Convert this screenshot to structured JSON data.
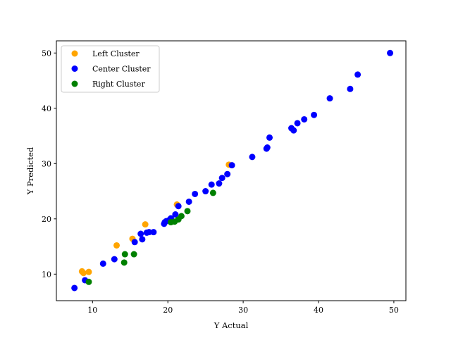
{
  "chart_data": {
    "type": "scatter",
    "title": "",
    "xlabel": "Y Actual",
    "ylabel": "Y Predicted",
    "xlim": [
      5.2,
      51.6
    ],
    "ylim": [
      5.2,
      52.2
    ],
    "xticks": [
      10,
      20,
      30,
      40,
      50
    ],
    "yticks": [
      10,
      20,
      30,
      40,
      50
    ],
    "xtick_labels": [
      "10",
      "20",
      "30",
      "40",
      "50"
    ],
    "ytick_labels": [
      "10",
      "20",
      "30",
      "40",
      "50"
    ],
    "grid": false,
    "legend_position": "top-left",
    "series": [
      {
        "name": "Left Cluster",
        "color": "#ffa500",
        "points": [
          {
            "x": 8.6,
            "y": 10.5
          },
          {
            "x": 8.8,
            "y": 10.2
          },
          {
            "x": 9.5,
            "y": 10.4
          },
          {
            "x": 13.2,
            "y": 15.2
          },
          {
            "x": 15.3,
            "y": 16.4
          },
          {
            "x": 17.0,
            "y": 19.0
          },
          {
            "x": 21.2,
            "y": 22.6
          },
          {
            "x": 28.1,
            "y": 29.8
          }
        ]
      },
      {
        "name": "Center Cluster",
        "color": "#0000ff",
        "points": [
          {
            "x": 7.6,
            "y": 7.5
          },
          {
            "x": 9.0,
            "y": 8.9
          },
          {
            "x": 11.4,
            "y": 11.9
          },
          {
            "x": 12.9,
            "y": 12.7
          },
          {
            "x": 15.6,
            "y": 15.8
          },
          {
            "x": 16.4,
            "y": 17.3
          },
          {
            "x": 16.6,
            "y": 16.3
          },
          {
            "x": 17.2,
            "y": 17.5
          },
          {
            "x": 17.5,
            "y": 17.6
          },
          {
            "x": 18.1,
            "y": 17.6
          },
          {
            "x": 19.5,
            "y": 19.1
          },
          {
            "x": 19.6,
            "y": 19.4
          },
          {
            "x": 19.8,
            "y": 19.6
          },
          {
            "x": 20.2,
            "y": 19.8
          },
          {
            "x": 20.4,
            "y": 20.1
          },
          {
            "x": 21.0,
            "y": 20.8
          },
          {
            "x": 21.4,
            "y": 22.3
          },
          {
            "x": 22.8,
            "y": 23.1
          },
          {
            "x": 23.6,
            "y": 24.5
          },
          {
            "x": 25.0,
            "y": 25.0
          },
          {
            "x": 25.8,
            "y": 26.2
          },
          {
            "x": 26.8,
            "y": 26.4
          },
          {
            "x": 27.2,
            "y": 27.4
          },
          {
            "x": 27.9,
            "y": 28.1
          },
          {
            "x": 28.5,
            "y": 29.7
          },
          {
            "x": 31.2,
            "y": 31.2
          },
          {
            "x": 33.1,
            "y": 32.7
          },
          {
            "x": 33.2,
            "y": 32.9
          },
          {
            "x": 33.5,
            "y": 34.7
          },
          {
            "x": 36.4,
            "y": 36.4
          },
          {
            "x": 36.7,
            "y": 36.0
          },
          {
            "x": 37.2,
            "y": 37.3
          },
          {
            "x": 38.1,
            "y": 38.0
          },
          {
            "x": 39.4,
            "y": 38.8
          },
          {
            "x": 41.5,
            "y": 41.8
          },
          {
            "x": 44.2,
            "y": 43.5
          },
          {
            "x": 45.2,
            "y": 46.1
          },
          {
            "x": 49.5,
            "y": 50.0
          }
        ]
      },
      {
        "name": "Right Cluster",
        "color": "#008000",
        "points": [
          {
            "x": 9.5,
            "y": 8.6
          },
          {
            "x": 14.2,
            "y": 12.1
          },
          {
            "x": 14.3,
            "y": 13.6
          },
          {
            "x": 15.5,
            "y": 13.6
          },
          {
            "x": 20.4,
            "y": 19.4
          },
          {
            "x": 20.9,
            "y": 19.5
          },
          {
            "x": 21.4,
            "y": 19.9
          },
          {
            "x": 21.8,
            "y": 20.5
          },
          {
            "x": 22.6,
            "y": 21.4
          },
          {
            "x": 26.0,
            "y": 24.7
          }
        ]
      }
    ]
  }
}
